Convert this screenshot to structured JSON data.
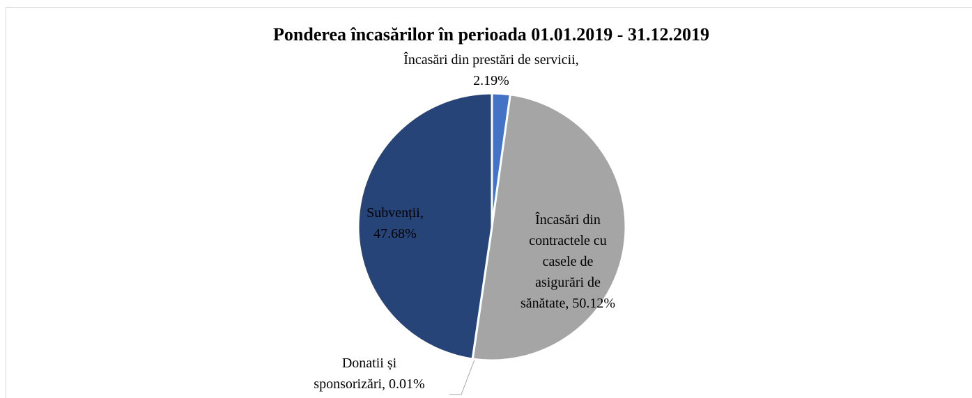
{
  "chart_data": {
    "type": "pie",
    "title": "Ponderea încasărilor în perioada 01.01.2019 - 31.12.2019",
    "categories": [
      "Încasări din prestări de servicii",
      "Încasări din contractele cu casele de asigurări de sănătate",
      "Donatii și sponsorizări",
      "Subvenții"
    ],
    "values": [
      2.19,
      50.12,
      0.01,
      47.68
    ],
    "value_labels": [
      "Încasări din prestări de servicii, 2.19%",
      "Încasări din contractele cu casele de asigurări de sănătate, 50.12%",
      "Donatii și sponsorizări, 0.01%",
      "Subvenții, 47.68%"
    ],
    "colors": [
      "#4472c4",
      "#a5a5a5",
      "#ffc000",
      "#264478"
    ]
  }
}
